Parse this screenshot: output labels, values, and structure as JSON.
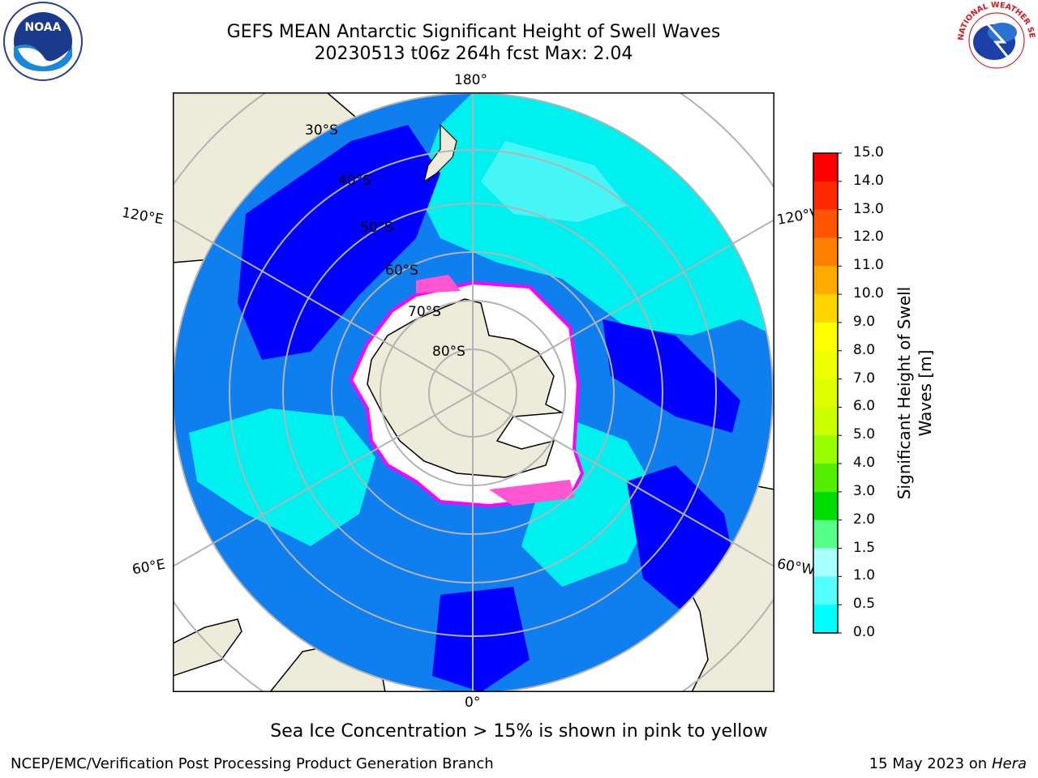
{
  "header": {
    "title_line1": "GEFS MEAN Antarctic Significant Height of Swell Waves",
    "title_line2": "20230513 t06z 264h fcst   Max: 2.04"
  },
  "map": {
    "projection": "south-polar-stereographic",
    "lat_labels": [
      "30°S",
      "40°S",
      "50°S",
      "60°S",
      "70°S",
      "80°S"
    ],
    "lon_labels": {
      "top": "180°",
      "bottom": "0°",
      "left_upper": "120°E",
      "left_lower": "60°E",
      "right_upper": "120°W",
      "right_lower": "60°W"
    },
    "colors": {
      "land": "#EDEBD9",
      "ocean_low": "#0000FF",
      "ocean_mid": "#0F7FF0",
      "ocean_high": "#00F0F0",
      "ocean_higher": "#46F5F5",
      "ice": "#FF55D0",
      "ice_edge": "#FF00FF",
      "grid": "#B3B3B3"
    }
  },
  "colorbar": {
    "label_line1": "Significant Height of Swell",
    "label_line2": "Waves [m]",
    "ticks": [
      "15.0",
      "14.0",
      "13.0",
      "12.0",
      "11.0",
      "10.0",
      "9.0",
      "8.0",
      "7.0",
      "6.0",
      "5.0",
      "4.0",
      "3.0",
      "2.0",
      "1.5",
      "1.0",
      "0.5",
      "0.0"
    ],
    "colors": [
      "#FF0000",
      "#FF2A00",
      "#FF5500",
      "#FF8000",
      "#FFAA00",
      "#FFD500",
      "#FFFF00",
      "#EEFF00",
      "#DDFF00",
      "#CCFF00",
      "#99FF00",
      "#55EE00",
      "#00DD00",
      "#55FF88",
      "#AAFFFF",
      "#55FFFF",
      "#00FFFF",
      "#0F7FF0",
      "#0000FF"
    ]
  },
  "footer": {
    "note": "Sea Ice Concentration > 15% is shown in pink to yellow",
    "credit": "NCEP/EMC/Verification Post Processing Product Generation Branch",
    "date": "15 May 2023 on",
    "host": "Hera"
  },
  "logos": {
    "noaa_text": "NOAA",
    "noaa_ring_top": "NATIONAL OCEANIC AND ATMOSPHERIC ADMINISTRATION",
    "noaa_ring_bottom": "U.S. DEPARTMENT OF COMMERCE",
    "nws_ring": "NATIONAL WEATHER SERVICE"
  }
}
